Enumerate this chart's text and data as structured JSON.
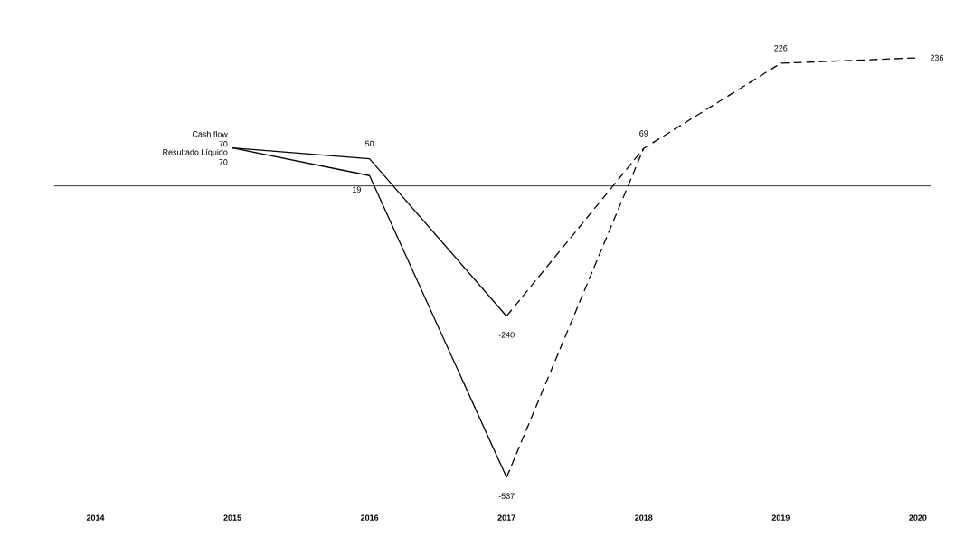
{
  "chart_data": {
    "type": "line",
    "categories": [
      "2014",
      "2015",
      "2016",
      "2017",
      "2018",
      "2019",
      "2020"
    ],
    "marker": "none",
    "tick_labels": "x",
    "ref_lines": [
      {
        "axis": "y",
        "value": 0,
        "color": "#000000"
      }
    ],
    "series": [
      {
        "name": "Cash flow",
        "color": "#000000",
        "line_style": "solid",
        "values": [
          null,
          70,
          50,
          -240,
          null,
          null,
          null
        ],
        "value_labels": [
          null,
          "70",
          "50",
          "-240",
          null,
          null,
          null
        ]
      },
      {
        "name": "Resultado Líquido",
        "color": "#000000",
        "line_style": "solid",
        "values": [
          null,
          70,
          19,
          -537,
          null,
          null,
          null
        ],
        "value_labels": [
          null,
          "70",
          "19",
          "-537",
          null,
          null,
          null
        ]
      },
      {
        "color": "#000000",
        "line_style": "dashed",
        "values": [
          null,
          null,
          null,
          -240,
          69,
          226,
          236
        ],
        "value_labels": [
          null,
          null,
          null,
          null,
          "69",
          "226",
          "236"
        ]
      },
      {
        "color": "#000000",
        "line_style": "dashed",
        "values": [
          null,
          null,
          null,
          -537,
          69,
          null,
          null
        ]
      }
    ]
  }
}
